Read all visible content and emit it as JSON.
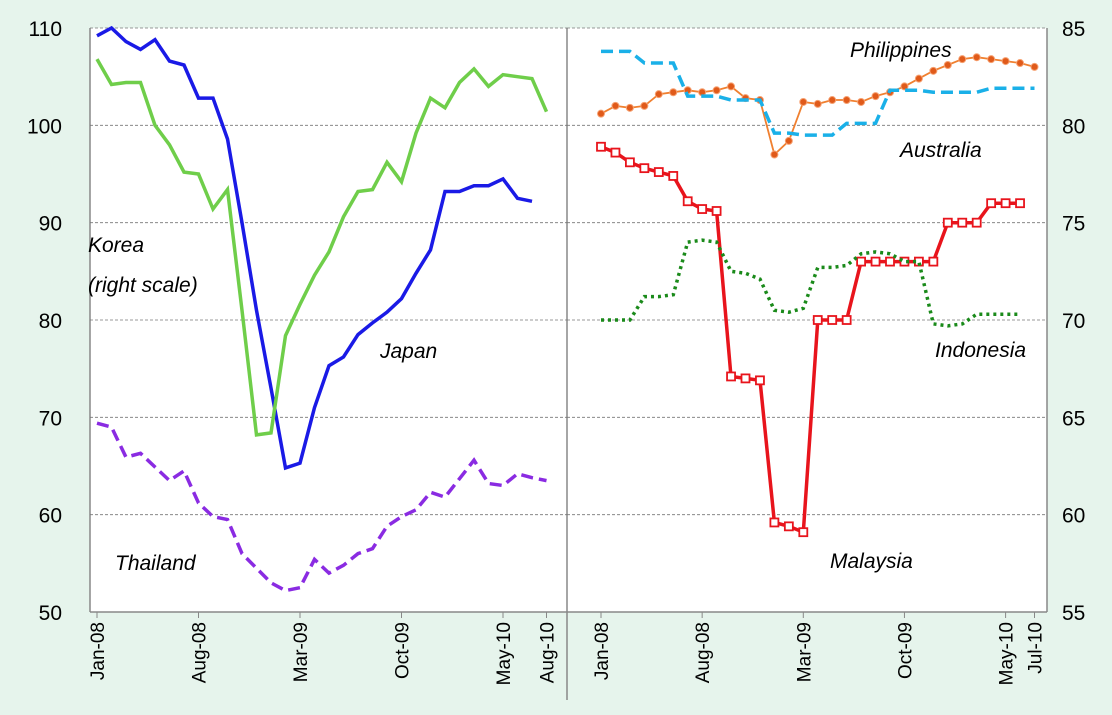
{
  "chart_data": [
    {
      "type": "line",
      "categories": [
        "Jan-08",
        null,
        null,
        null,
        null,
        null,
        null,
        "Aug-08",
        null,
        null,
        null,
        null,
        null,
        null,
        "Mar-09",
        null,
        null,
        null,
        null,
        null,
        null,
        "Oct-09",
        null,
        null,
        null,
        null,
        null,
        null,
        "May-10",
        null,
        null,
        "Aug-10"
      ],
      "ylim": [
        50,
        110
      ],
      "yticks": [
        50,
        60,
        70,
        80,
        90,
        100,
        110
      ],
      "y2lim": [
        55,
        85
      ],
      "grid": true,
      "annotations": [
        "(right scale)"
      ],
      "series": [
        {
          "name": "Japan",
          "color": "#1a1ae6",
          "dash": "solid",
          "values": [
            109.2,
            110,
            108.6,
            107.8,
            108.8,
            106.6,
            106.2,
            102.8,
            102.8,
            98.6,
            90,
            81,
            73,
            64.8,
            65.3,
            71,
            75.3,
            76.2,
            78.5,
            79.7,
            80.8,
            82.2,
            84.8,
            87.2,
            93.2,
            93.2,
            93.8,
            93.8,
            94.5,
            92.5,
            92.2,
            null
          ]
        },
        {
          "name": "Korea",
          "color": "#6fce4a",
          "dash": "solid",
          "axis": "y2",
          "values": [
            83.4,
            82.1,
            82.2,
            82.2,
            80,
            79,
            77.6,
            77.5,
            75.7,
            76.7,
            70.5,
            64.1,
            64.2,
            69.2,
            70.8,
            72.3,
            73.5,
            75.3,
            76.6,
            76.7,
            78.1,
            77.1,
            79.6,
            81.4,
            80.9,
            82.2,
            82.9,
            82,
            82.6,
            82.5,
            82.4,
            80.7
          ]
        },
        {
          "name": "Thailand",
          "color": "#8a2be2",
          "dash": "dashed",
          "values": [
            69.4,
            69,
            65.9,
            66.3,
            64.9,
            63.5,
            64.5,
            61.2,
            59.8,
            59.5,
            56,
            54.5,
            53,
            52.2,
            52.5,
            55.4,
            54,
            54.8,
            56,
            56.5,
            58.8,
            59.8,
            60.5,
            62.3,
            61.8,
            63.7,
            65.6,
            63.2,
            63,
            64.2,
            63.8,
            63.5
          ]
        }
      ]
    },
    {
      "type": "line",
      "categories": [
        "Jan-08",
        null,
        null,
        null,
        null,
        null,
        null,
        "Aug-08",
        null,
        null,
        null,
        null,
        null,
        null,
        "Mar-09",
        null,
        null,
        null,
        null,
        null,
        null,
        "Oct-09",
        null,
        null,
        null,
        null,
        null,
        null,
        "May-10",
        null,
        "Jul-10"
      ],
      "ylim": [
        55,
        85
      ],
      "yticks": [
        55,
        60,
        65,
        70,
        75,
        80,
        85
      ],
      "grid": true,
      "series": [
        {
          "name": "Philippines",
          "color": "#f08030",
          "dash": "solid",
          "marker": "circle",
          "values": [
            80.6,
            81,
            80.9,
            81,
            81.6,
            81.7,
            81.8,
            81.7,
            81.8,
            82,
            81.4,
            81.3,
            78.5,
            79.2,
            81.2,
            81.1,
            81.3,
            81.3,
            81.2,
            81.5,
            81.7,
            82,
            82.4,
            82.8,
            83.1,
            83.4,
            83.5,
            83.4,
            83.3,
            83.2,
            83
          ]
        },
        {
          "name": "Australia",
          "color": "#1ab0e8",
          "dash": "dashed",
          "values": [
            83.8,
            83.8,
            83.8,
            83.2,
            83.2,
            83.2,
            81.5,
            81.5,
            81.5,
            81.3,
            81.3,
            81.3,
            79.6,
            79.6,
            79.5,
            79.5,
            79.5,
            80.1,
            80.1,
            80.1,
            81.8,
            81.8,
            81.8,
            81.7,
            81.7,
            81.7,
            81.7,
            81.9,
            81.9,
            81.9,
            81.9
          ]
        },
        {
          "name": "Malaysia",
          "color": "#e8141c",
          "dash": "solid",
          "marker": "square",
          "values": [
            78.9,
            78.6,
            78.1,
            77.8,
            77.6,
            77.4,
            76.1,
            75.7,
            75.6,
            67.1,
            67,
            66.9,
            59.6,
            59.4,
            59.1,
            70,
            70,
            70,
            73,
            73,
            73,
            73,
            73,
            73,
            75,
            75,
            75,
            76,
            76,
            76,
            null
          ]
        },
        {
          "name": "Indonesia",
          "color": "#1a8a1a",
          "dash": "dotted",
          "values": [
            70,
            70,
            70,
            71.2,
            71.2,
            71.3,
            74,
            74.1,
            74,
            72.5,
            72.4,
            72.1,
            70.5,
            70.4,
            70.6,
            72.7,
            72.7,
            72.8,
            73.4,
            73.5,
            73.4,
            73,
            73,
            69.8,
            69.7,
            69.8,
            70.3,
            70.3,
            70.3,
            70.3,
            null
          ]
        }
      ]
    }
  ]
}
